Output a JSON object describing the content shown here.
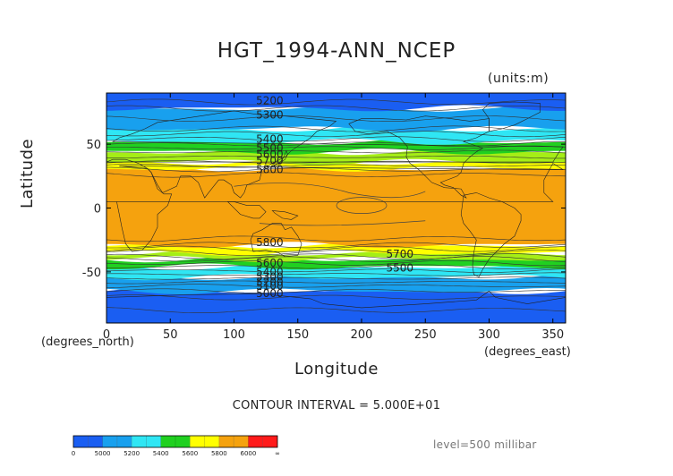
{
  "chart_data": {
    "type": "heatmap",
    "title": "HGT_1994-ANN_NCEP",
    "units": "(units:m)",
    "xlabel": "Longitude",
    "ylabel": "Latitude",
    "x_unit": "(degrees_north)",
    "x_unit_right": "(degrees_east)",
    "xlim": [
      0,
      360
    ],
    "ylim": [
      -90,
      90
    ],
    "xticks": [
      0,
      50,
      100,
      150,
      200,
      250,
      300,
      350
    ],
    "yticks": [
      -50,
      0,
      50
    ],
    "contour_interval": "CONTOUR INTERVAL = 5.000E+01",
    "level": "level=500 millibar",
    "bands": [
      {
        "lat_top": -65,
        "lat_bottom": -90,
        "color": "#1a5ef2"
      },
      {
        "lat_top": -54,
        "lat_bottom": -65,
        "color": "#18a0ee"
      },
      {
        "lat_top": -46,
        "lat_bottom": -54,
        "color": "#2fe6f4"
      },
      {
        "lat_top": -40,
        "lat_bottom": -46,
        "color": "#20d020"
      },
      {
        "lat_top": -35,
        "lat_bottom": -40,
        "color": "#a5ee16"
      },
      {
        "lat_top": -29,
        "lat_bottom": -35,
        "color": "#ffff00"
      },
      {
        "lat_top": 31,
        "lat_bottom": -29,
        "color": "#f5a20e"
      },
      {
        "lat_top": 36,
        "lat_bottom": 31,
        "color": "#ffff00"
      },
      {
        "lat_top": 44,
        "lat_bottom": 36,
        "color": "#a5ee16"
      },
      {
        "lat_top": 52,
        "lat_bottom": 44,
        "color": "#20d020"
      },
      {
        "lat_top": 62,
        "lat_bottom": 52,
        "color": "#2fe6f4"
      },
      {
        "lat_top": 78,
        "lat_bottom": 62,
        "color": "#18a0ee"
      },
      {
        "lat_top": 90,
        "lat_bottom": 78,
        "color": "#1a5ef2"
      }
    ],
    "contour_labels": [
      {
        "text": "5200",
        "x": 128,
        "y": 84
      },
      {
        "text": "5300",
        "x": 128,
        "y": 73
      },
      {
        "text": "5400",
        "x": 128,
        "y": 54
      },
      {
        "text": "5500",
        "x": 128,
        "y": 47
      },
      {
        "text": "5600",
        "x": 128,
        "y": 42
      },
      {
        "text": "5700",
        "x": 128,
        "y": 37
      },
      {
        "text": "5800",
        "x": 128,
        "y": 30
      },
      {
        "text": "5800",
        "x": 128,
        "y": -27
      },
      {
        "text": "5700",
        "x": 230,
        "y": -36
      },
      {
        "text": "5600",
        "x": 128,
        "y": -43
      },
      {
        "text": "5500",
        "x": 230,
        "y": -47
      },
      {
        "text": "5400",
        "x": 128,
        "y": -50
      },
      {
        "text": "5300",
        "x": 128,
        "y": -54
      },
      {
        "text": "5200",
        "x": 128,
        "y": -58
      },
      {
        "text": "5100",
        "x": 128,
        "y": -61
      },
      {
        "text": "5000",
        "x": 128,
        "y": -67
      }
    ],
    "colorbar": {
      "labels": [
        "0",
        "5000",
        "5200",
        "5400",
        "5600",
        "5800",
        "6000",
        "∞"
      ],
      "colors": [
        "#1a5ef2",
        "#1a5ef2",
        "#18a0ee",
        "#18a0ee",
        "#2fe6f4",
        "#2fe6f4",
        "#20d020",
        "#20d020",
        "#ffff00",
        "#ffff00",
        "#f5a20e",
        "#f5a20e",
        "#ff1a1a",
        "#ff1a1a"
      ]
    }
  }
}
